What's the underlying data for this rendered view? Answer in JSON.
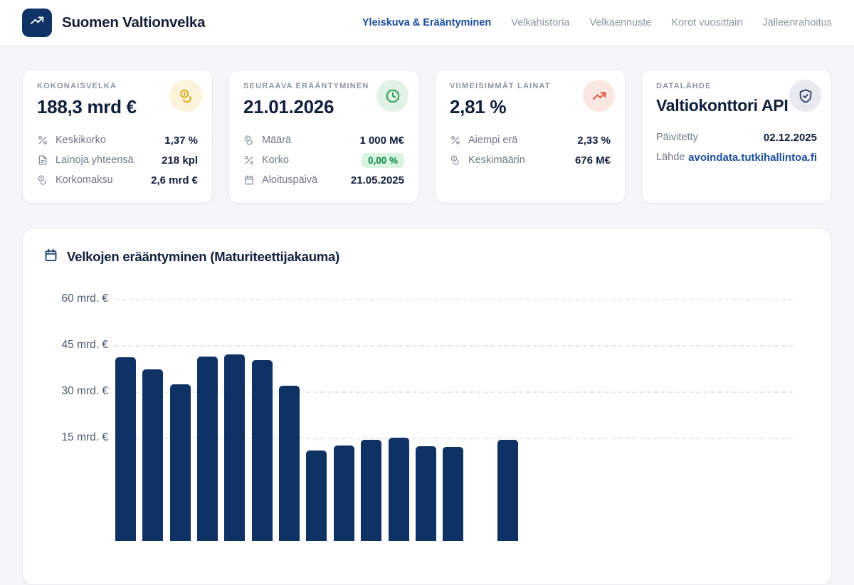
{
  "brand": {
    "title": "Suomen Valtionvelka",
    "logo_icon": "trending-up-icon"
  },
  "nav": {
    "items": [
      {
        "label": "Yleiskuva & Erääntyminen",
        "active": true
      },
      {
        "label": "Velkahistoria",
        "active": false
      },
      {
        "label": "Velkaennuste",
        "active": false
      },
      {
        "label": "Korot vuosittain",
        "active": false
      },
      {
        "label": "Jälleenrahoitus",
        "active": false
      }
    ]
  },
  "cards": [
    {
      "label": "KOKONAISVELKA",
      "value": "188,3 mrd €",
      "icon": "coins-icon",
      "icon_color": "#D9A50B",
      "icon_bg": "#FBF3DA",
      "rows": [
        {
          "icon": "percent-icon",
          "label": "Keskikorko",
          "value": "1,37 %"
        },
        {
          "icon": "file-icon",
          "label": "Lainoja yhteensä",
          "value": "218 kpl"
        },
        {
          "icon": "coins-icon",
          "label": "Korkomaksu",
          "value": "2,6 mrd €"
        }
      ]
    },
    {
      "label": "SEURAAVA ERÄÄNTYMINEN",
      "value": "21.01.2026",
      "icon": "clock-icon",
      "icon_color": "#1E9A50",
      "icon_bg": "#DFF2E5",
      "rows": [
        {
          "icon": "coins-icon",
          "label": "Määrä",
          "value": "1 000 M€"
        },
        {
          "icon": "percent-icon",
          "label": "Korko",
          "value": "0,00 %",
          "badge": true
        },
        {
          "icon": "calendar-icon",
          "label": "Aloituspäivä",
          "value": "21.05.2025"
        }
      ]
    },
    {
      "label": "VIIMEISIMMÄT LAINAT",
      "value": "2,81 %",
      "icon": "trending-up-icon",
      "icon_color": "#E04A2F",
      "icon_bg": "#FBE7E1",
      "rows": [
        {
          "icon": "percent-icon",
          "label": "Aiempi erä",
          "value": "2,33 %"
        },
        {
          "icon": "coins-icon",
          "label": "Keskimäärin",
          "value": "676 M€"
        }
      ]
    },
    {
      "label": "DATALÄHDE",
      "value": "Valtiokonttori API",
      "small_value": true,
      "icon": "shield-check-icon",
      "icon_color": "#2A3F66",
      "icon_bg": "#E8EAEF",
      "rows": [
        {
          "label": "Päivitetty",
          "value": "02.12.2025"
        },
        {
          "label": "Lähde",
          "value": "avoindata.tutkihallintoa.fi",
          "link": true
        }
      ]
    }
  ],
  "chart": {
    "title": "Velkojen erääntyminen (Maturiteettijakauma)",
    "icon": "calendar-icon"
  },
  "chart_data": {
    "type": "bar",
    "title": "Velkojen erääntyminen (Maturiteettijakauma)",
    "ylabel": "mrd. €",
    "y_ticks": [
      "60 mrd. €",
      "45 mrd. €",
      "30 mrd. €",
      "15 mrd. €"
    ],
    "y_tick_values": [
      60,
      45,
      30,
      15
    ],
    "ylim": [
      0,
      65
    ],
    "grid": "dashed-horizontal",
    "bar_color": "#0F3264",
    "values": [
      41.1,
      37.2,
      32.3,
      41.3,
      42.0,
      40.2,
      31.8,
      10.8,
      12.5,
      14.3,
      15.0,
      12.2,
      12.0,
      null,
      14.3
    ],
    "note": "x-axis labels and bar bottoms are cut off below the visible viewport; one bar slot (14th) is not visible above the crop line"
  },
  "theme": {
    "page_bg": "#F5F6F8",
    "card_bg": "#FFFFFF",
    "navy": "#0F3264",
    "text_dark": "#101F3C",
    "text_gray": "#6F7889",
    "active_nav": "#1A4B9D",
    "link_blue": "#1D4F9E",
    "badge_green_bg": "#D9F4E2",
    "badge_green_text": "#0E8A46"
  }
}
